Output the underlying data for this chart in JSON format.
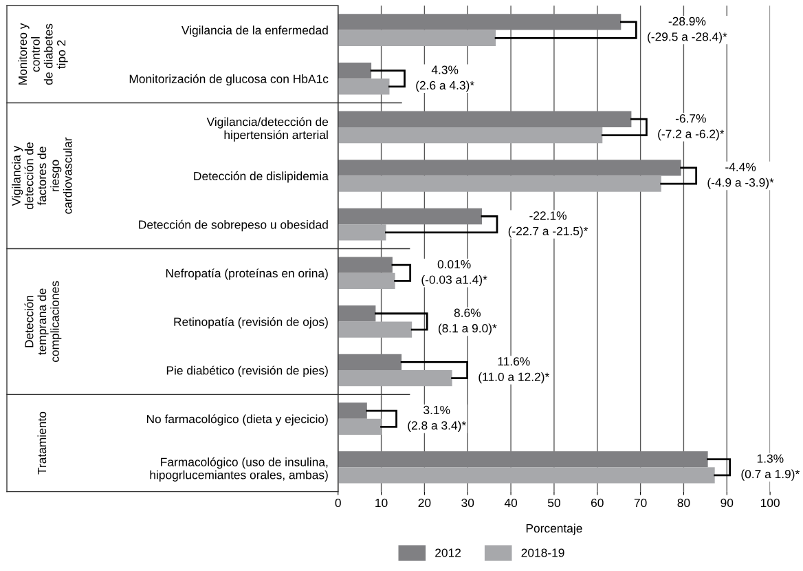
{
  "chart_data": {
    "type": "bar",
    "orientation": "horizontal",
    "xlabel": "Porcentaje",
    "categories": [
      "Vigilancia de la enfermedad",
      "Monitorización de glucosa con HbA1c",
      "Vigilancia/detección de\nhipertensión arterial",
      "Detección de dislipidemia",
      "Detección de sobrepeso u obesidad",
      "Nefropatía (proteínas en orina)",
      "Retinopatía (revisión de ojos)",
      "Pie diabético (revisión de pies)",
      "No farmacológico (dieta y ejecicio)",
      "Farmacológico (uso de insulina,\nhipogrlucemiantes orales, ambas)"
    ],
    "series": [
      {
        "name": "2012",
        "color": "#808083",
        "values": [
          65.5,
          7.7,
          67.9,
          79.4,
          33.3,
          12.6,
          8.7,
          14.7,
          6.7,
          85.6
        ]
      },
      {
        "name": "2018-19",
        "color": "#a7a8ab",
        "values": [
          36.5,
          11.9,
          61.2,
          74.8,
          11.1,
          13.2,
          17.1,
          26.4,
          10.0,
          87.2
        ]
      }
    ],
    "xlim": [
      0,
      100
    ],
    "xticks": [
      0,
      10,
      20,
      30,
      40,
      50,
      60,
      70,
      80,
      90,
      100
    ],
    "grid": "x",
    "legend": "bottom",
    "annotations": [
      "-28.9%\n(-29.5 a -28.4)*",
      "4.3%\n(2.6 a 4.3)*",
      "-6.7%\n(-7.2 a -6.2)*",
      "-4.4%\n(-4.9 a -3.9)*",
      "-22.1%\n(-22.7 a -21.5)*",
      "0.01%\n(-0.03 a1.4)*",
      "8.6%\n(8.1 a 9.0)*",
      "11.6%\n(11.0 a 12.2)*",
      "3.1%\n(2.8 a 3.4)*",
      "1.3%\n(0.7 a 1.9)*",
      "Monitoreo y\ncontrol\nde diabetes\ntipo 2",
      "Vigilancia y\ndetección de\nfactores de\nriesgo\ncardiovascular",
      "Detección\ntemprana de\ncomplicaciones",
      "Tratamiento"
    ]
  }
}
